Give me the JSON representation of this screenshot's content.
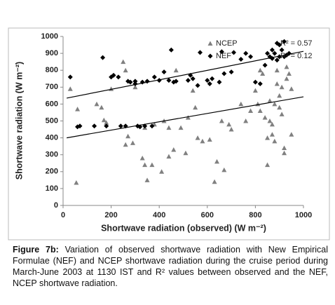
{
  "chart_data": {
    "type": "scatter",
    "xlabel": "Shortwave radiation (observed) (W m⁻²)",
    "ylabel": "Shortwave radiation  (W m⁻²)",
    "xlim": [
      0,
      1000
    ],
    "xticks": [
      0,
      200,
      400,
      600,
      800,
      1000
    ],
    "ylim": [
      0,
      1000
    ],
    "yticks": [
      0,
      100,
      200,
      300,
      400,
      500,
      600,
      700,
      800,
      900,
      1000
    ],
    "series": [
      {
        "name": "NCEP",
        "annotation": "R² = 0.57",
        "color": "#808080",
        "marker": "triangle",
        "x": [
          30,
          55,
          60,
          140,
          160,
          170,
          180,
          200,
          250,
          260,
          260,
          270,
          290,
          300,
          330,
          340,
          340,
          350,
          370,
          380,
          410,
          420,
          440,
          440,
          460,
          470,
          490,
          510,
          520,
          540,
          550,
          560,
          580,
          610,
          630,
          640,
          660,
          670,
          690,
          700,
          740,
          760,
          780,
          800,
          810,
          820,
          820,
          830,
          840,
          850,
          850,
          860,
          860,
          870,
          870,
          880,
          880,
          890,
          890,
          900,
          900,
          910,
          910,
          920,
          920,
          930,
          930,
          940,
          950,
          950
        ],
        "y": [
          690,
          135,
          570,
          600,
          580,
          505,
          490,
          690,
          850,
          800,
          360,
          410,
          370,
          700,
          280,
          240,
          460,
          150,
          240,
          480,
          200,
          500,
          290,
          460,
          330,
          800,
          460,
          310,
          520,
          680,
          580,
          400,
          380,
          390,
          140,
          260,
          500,
          210,
          480,
          450,
          600,
          500,
          560,
          680,
          600,
          560,
          800,
          780,
          520,
          400,
          240,
          620,
          500,
          480,
          420,
          380,
          600,
          720,
          800,
          650,
          580,
          700,
          540,
          340,
          310,
          820,
          750,
          780,
          690,
          420
        ],
        "trendline": {
          "x": [
            15,
            1000
          ],
          "y": [
            400,
            643
          ]
        }
      },
      {
        "name": "NEF",
        "annotation": "R² = 0.12",
        "color": "#000000",
        "marker": "diamond",
        "x": [
          30,
          60,
          70,
          165,
          130,
          180,
          200,
          210,
          230,
          240,
          260,
          270,
          280,
          300,
          300,
          310,
          320,
          330,
          340,
          350,
          370,
          380,
          400,
          420,
          440,
          450,
          460,
          470,
          520,
          530,
          540,
          560,
          570,
          600,
          610,
          620,
          650,
          660,
          670,
          700,
          710,
          740,
          760,
          780,
          800,
          820,
          840,
          850,
          860,
          870,
          880,
          890,
          900,
          900,
          910,
          920,
          930,
          940,
          870,
          920,
          890
        ],
        "y": [
          760,
          465,
          470,
          875,
          470,
          470,
          760,
          770,
          760,
          470,
          470,
          735,
          730,
          720,
          735,
          470,
          465,
          730,
          470,
          735,
          470,
          760,
          740,
          790,
          740,
          920,
          730,
          735,
          740,
          770,
          750,
          710,
          905,
          740,
          720,
          750,
          730,
          910,
          780,
          790,
          905,
          865,
          900,
          880,
          730,
          720,
          830,
          900,
          880,
          920,
          900,
          960,
          950,
          880,
          920,
          880,
          890,
          900,
          870,
          970,
          860
        ],
        "trendline": {
          "x": [
            15,
            1000
          ],
          "y": [
            635,
            912
          ]
        }
      }
    ]
  },
  "caption": {
    "label": "Figure 7b:",
    "text": " Variation of observed shortwave radiation with New Empirical Formulae (NEF) and NCEP shortwave radiation during the cruise period during March-June 2003 at 1130 IST and R² values between observed and the NEF, NCEP shortwave radiation."
  }
}
